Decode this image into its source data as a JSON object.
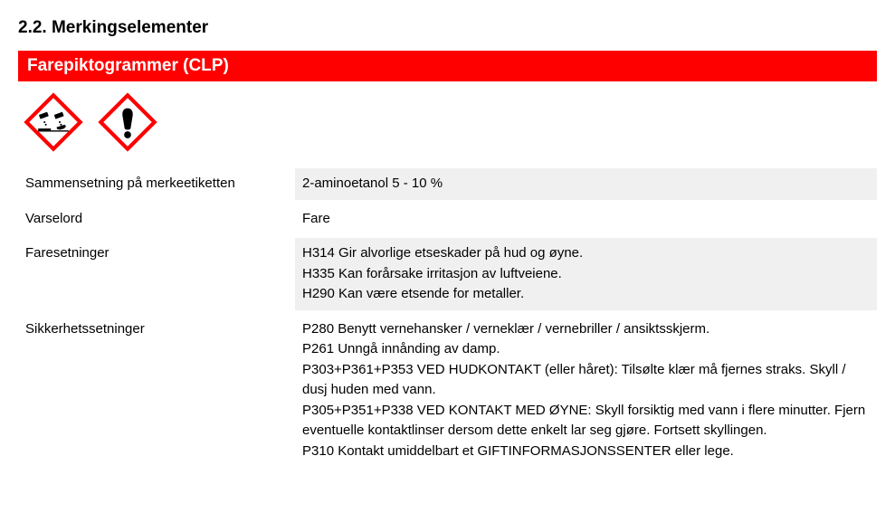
{
  "section_number_title": "2.2. Merkingselementer",
  "red_bar_title": "Farepiktogrammer (CLP)",
  "pictograms": [
    {
      "name": "corrosion-icon",
      "border_color": "#ff0000",
      "fill_color": "#ffffff"
    },
    {
      "name": "exclamation-icon",
      "border_color": "#ff0000",
      "fill_color": "#ffffff"
    }
  ],
  "rows": {
    "composition": {
      "label": "Sammensetning på merkeetiketten",
      "value": "2-aminoetanol 5 - 10 %",
      "shaded": true
    },
    "signal_word": {
      "label": "Varselord",
      "value": "Fare",
      "shaded": false
    },
    "hazard_statements": {
      "label": "Faresetninger",
      "lines": [
        "H314 Gir alvorlige etseskader på hud og øyne.",
        "H335 Kan forårsake irritasjon av luftveiene.",
        "H290 Kan være etsende for metaller."
      ],
      "shaded": true
    },
    "precautionary_statements": {
      "label": "Sikkerhetssetninger",
      "lines": [
        "P280 Benytt vernehansker / verneklær / vernebriller / ansiktsskjerm.",
        "P261 Unngå innånding av damp.",
        "P303+P361+P353 VED HUDKONTAKT (eller håret): Tilsølte klær må fjernes straks. Skyll / dusj huden med vann.",
        "P305+P351+P338 VED KONTAKT MED ØYNE: Skyll forsiktig med vann i flere minutter. Fjern eventuelle kontaktlinser dersom dette enkelt lar seg gjøre. Fortsett skyllingen.",
        "P310 Kontakt umiddelbart et GIFTINFORMASJONSSENTER eller lege."
      ],
      "shaded": false
    }
  },
  "colors": {
    "red_bar_bg": "#ff0000",
    "red_bar_text": "#ffffff",
    "shaded_bg": "#f0f0f0",
    "text": "#000000"
  }
}
